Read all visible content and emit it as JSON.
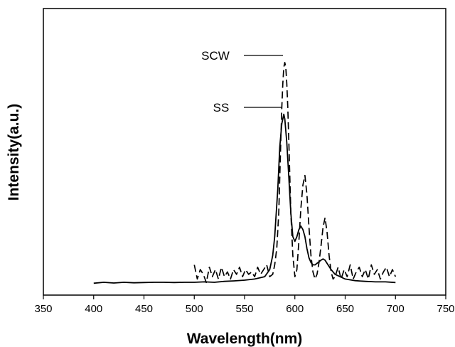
{
  "chart_data": {
    "type": "line",
    "title": "",
    "xlabel": "Wavelength(nm)",
    "ylabel": "Intensity(a.u.)",
    "xlim": [
      350,
      750
    ],
    "ylim": [
      0,
      100
    ],
    "xticks": [
      "350",
      "400",
      "450",
      "500",
      "550",
      "600",
      "650",
      "700",
      "750"
    ],
    "grid": false,
    "series": [
      {
        "name": "SS",
        "style": "solid",
        "color": "#000000",
        "x": [
          400,
          410,
          420,
          430,
          440,
          450,
          460,
          470,
          480,
          490,
          500,
          510,
          520,
          530,
          540,
          550,
          560,
          570,
          575,
          578,
          580,
          583,
          585,
          587,
          589,
          590,
          592,
          594,
          596,
          598,
          600,
          602,
          604,
          606,
          608,
          610,
          612,
          614,
          616,
          618,
          620,
          623,
          626,
          628,
          630,
          633,
          636,
          640,
          645,
          650,
          660,
          670,
          680,
          690,
          700
        ],
        "y": [
          0.2,
          0.6,
          0.3,
          0.6,
          0.4,
          0.5,
          0.6,
          0.6,
          0.5,
          0.6,
          0.6,
          0.8,
          0.6,
          1.0,
          1.2,
          1.5,
          2.0,
          3.0,
          6,
          12,
          20,
          40,
          58,
          68,
          72,
          70,
          60,
          45,
          30,
          20,
          18,
          20,
          23,
          24.5,
          23,
          20,
          15,
          11,
          9,
          8,
          8,
          9,
          10,
          10.5,
          10,
          8,
          6,
          4,
          3,
          2,
          1.3,
          1.0,
          0.8,
          0.8,
          0.5
        ]
      },
      {
        "name": "SCW",
        "style": "dashed",
        "color": "#000000",
        "x": [
          500,
          503,
          506,
          509,
          512,
          515,
          518,
          521,
          524,
          527,
          530,
          533,
          536,
          539,
          542,
          545,
          548,
          551,
          554,
          557,
          560,
          563,
          566,
          569,
          572,
          575,
          578,
          580,
          582,
          584,
          585,
          586,
          587,
          588,
          589,
          590,
          591,
          592,
          593,
          594,
          595,
          596,
          598,
          600,
          602,
          604,
          606,
          608,
          610,
          612,
          614,
          616,
          618,
          620,
          622,
          624,
          626,
          628,
          630,
          632,
          634,
          636,
          638,
          640,
          643,
          646,
          649,
          652,
          655,
          658,
          661,
          664,
          667,
          670,
          673,
          676,
          679,
          682,
          685,
          688,
          691,
          694,
          697,
          700
        ],
        "y": [
          8,
          2,
          6,
          4,
          0.5,
          7,
          3,
          6,
          2,
          7,
          3,
          5,
          2,
          6,
          4,
          7,
          3,
          6,
          4,
          5,
          3,
          7,
          4,
          6,
          8,
          3,
          4,
          8,
          15,
          30,
          45,
          60,
          75,
          85,
          92,
          94,
          92,
          85,
          75,
          60,
          45,
          30,
          12,
          3,
          6,
          18,
          32,
          42,
          46,
          38,
          24,
          12,
          5,
          2,
          4,
          9,
          16,
          24,
          28,
          22,
          12,
          5,
          2,
          3,
          7,
          2,
          6,
          3,
          8,
          2,
          5,
          7,
          3,
          6,
          2,
          8,
          4,
          6,
          2,
          5,
          7,
          3,
          6,
          3
        ]
      }
    ],
    "legend": [
      {
        "label": "SCW",
        "style": "dashed"
      },
      {
        "label": "SS",
        "style": "solid"
      }
    ]
  }
}
